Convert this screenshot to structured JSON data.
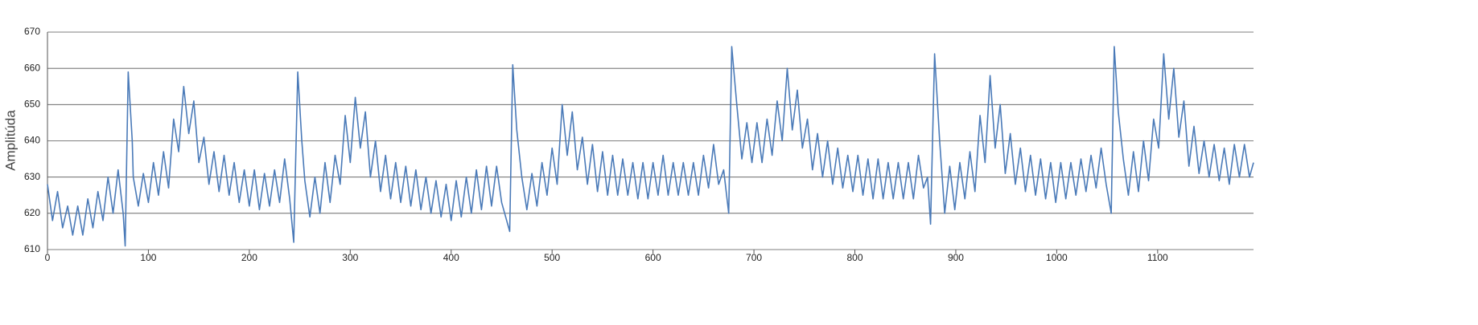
{
  "chart_data": {
    "type": "line",
    "y_label": "Amplitúda",
    "color": "#4a7ab8",
    "grid": true,
    "xlim": [
      0,
      1195
    ],
    "ylim": [
      610,
      670
    ],
    "xticks": [
      0,
      100,
      200,
      300,
      400,
      500,
      600,
      700,
      800,
      900,
      1000,
      1100
    ],
    "yticks": [
      610,
      620,
      630,
      640,
      650,
      660,
      670
    ],
    "x": [
      0,
      5,
      10,
      15,
      20,
      25,
      30,
      35,
      40,
      45,
      50,
      55,
      60,
      65,
      70,
      75,
      77,
      80,
      84,
      85,
      90,
      95,
      100,
      105,
      110,
      115,
      120,
      125,
      130,
      135,
      140,
      145,
      150,
      155,
      160,
      165,
      170,
      175,
      180,
      185,
      190,
      195,
      200,
      205,
      210,
      215,
      220,
      225,
      230,
      235,
      240,
      244,
      248,
      252,
      255,
      260,
      265,
      270,
      275,
      280,
      285,
      290,
      295,
      300,
      305,
      310,
      315,
      320,
      325,
      330,
      335,
      340,
      345,
      350,
      355,
      360,
      365,
      370,
      375,
      380,
      385,
      390,
      395,
      400,
      405,
      410,
      415,
      420,
      425,
      430,
      435,
      440,
      445,
      450,
      458,
      461,
      465,
      470,
      475,
      480,
      485,
      490,
      495,
      500,
      505,
      510,
      515,
      520,
      525,
      530,
      535,
      540,
      545,
      550,
      555,
      560,
      565,
      570,
      575,
      580,
      585,
      590,
      595,
      600,
      605,
      610,
      615,
      620,
      625,
      630,
      635,
      640,
      645,
      650,
      655,
      660,
      665,
      670,
      675,
      678,
      683,
      688,
      693,
      698,
      703,
      708,
      713,
      718,
      723,
      728,
      733,
      738,
      743,
      748,
      753,
      758,
      763,
      768,
      773,
      778,
      783,
      788,
      793,
      798,
      803,
      808,
      813,
      818,
      823,
      828,
      833,
      838,
      843,
      848,
      853,
      858,
      863,
      868,
      872,
      875,
      879,
      884,
      889,
      894,
      899,
      904,
      909,
      914,
      919,
      924,
      929,
      934,
      939,
      944,
      949,
      954,
      959,
      964,
      969,
      974,
      979,
      984,
      989,
      994,
      999,
      1004,
      1009,
      1014,
      1019,
      1024,
      1029,
      1034,
      1039,
      1044,
      1049,
      1054,
      1057,
      1061,
      1066,
      1071,
      1076,
      1081,
      1086,
      1091,
      1096,
      1101,
      1106,
      1111,
      1116,
      1121,
      1126,
      1131,
      1136,
      1141,
      1146,
      1151,
      1156,
      1161,
      1166,
      1171,
      1176,
      1181,
      1186,
      1191,
      1195
    ],
    "values": [
      628,
      618,
      626,
      616,
      622,
      614,
      622,
      614,
      624,
      616,
      626,
      618,
      630,
      620,
      632,
      620,
      611,
      659,
      640,
      630,
      622,
      631,
      623,
      634,
      625,
      637,
      627,
      646,
      637,
      655,
      642,
      651,
      634,
      641,
      628,
      637,
      626,
      636,
      625,
      634,
      623,
      632,
      622,
      632,
      621,
      631,
      622,
      632,
      623,
      635,
      624,
      612,
      659,
      640,
      629,
      619,
      630,
      620,
      634,
      623,
      636,
      628,
      647,
      634,
      652,
      638,
      648,
      630,
      640,
      626,
      636,
      624,
      634,
      623,
      633,
      622,
      632,
      621,
      630,
      620,
      629,
      619,
      628,
      618,
      629,
      619,
      630,
      620,
      632,
      621,
      633,
      622,
      633,
      623,
      615,
      661,
      643,
      630,
      621,
      631,
      622,
      634,
      625,
      638,
      628,
      650,
      636,
      648,
      632,
      641,
      628,
      639,
      626,
      637,
      625,
      636,
      625,
      635,
      625,
      634,
      624,
      634,
      624,
      634,
      625,
      636,
      625,
      634,
      625,
      634,
      625,
      634,
      625,
      636,
      627,
      639,
      628,
      632,
      620,
      666,
      650,
      635,
      645,
      634,
      645,
      634,
      646,
      636,
      651,
      640,
      660,
      643,
      654,
      638,
      646,
      632,
      642,
      630,
      640,
      628,
      638,
      627,
      636,
      626,
      636,
      625,
      635,
      624,
      635,
      624,
      634,
      624,
      634,
      624,
      634,
      624,
      636,
      627,
      630,
      617,
      664,
      640,
      620,
      633,
      621,
      634,
      624,
      637,
      626,
      647,
      634,
      658,
      638,
      650,
      631,
      642,
      628,
      638,
      626,
      636,
      625,
      635,
      624,
      634,
      623,
      634,
      624,
      634,
      625,
      635,
      626,
      636,
      627,
      638,
      628,
      620,
      666,
      648,
      635,
      625,
      637,
      626,
      640,
      629,
      646,
      638,
      664,
      646,
      660,
      641,
      651,
      633,
      644,
      631,
      640,
      630,
      639,
      629,
      638,
      628,
      639,
      630,
      639,
      630,
      634
    ]
  }
}
